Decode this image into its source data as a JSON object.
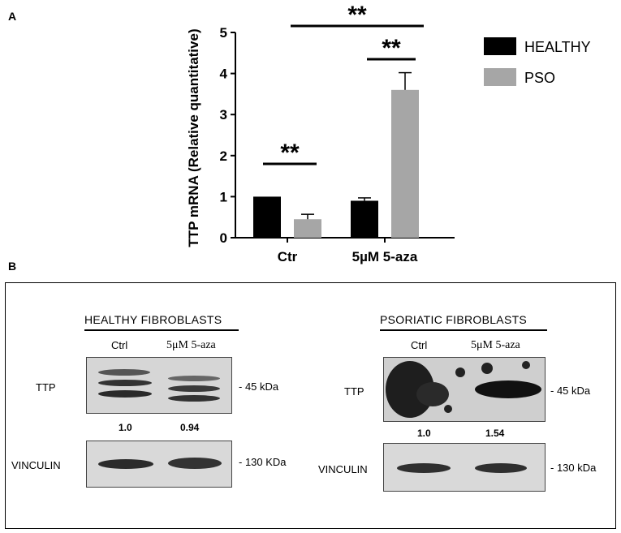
{
  "panel_a_label": "A",
  "panel_b_label": "B",
  "chart_data": {
    "type": "bar",
    "categories": [
      "Ctr",
      "5µM 5-aza"
    ],
    "series": [
      {
        "name": "HEALTHY",
        "color": "#000000",
        "values": [
          1.0,
          0.9
        ],
        "errors": [
          0.0,
          0.07
        ]
      },
      {
        "name": "PSO",
        "color": "#a6a6a6",
        "values": [
          0.45,
          3.6
        ],
        "errors": [
          0.12,
          0.42
        ]
      }
    ],
    "ylabel": "TTP mRNA (Relative quantitative)",
    "xlabel": "",
    "ylim": [
      0,
      5
    ],
    "yticks": [
      "0",
      "1",
      "2",
      "3",
      "4",
      "5"
    ],
    "grid": false,
    "legend_position": "right",
    "significance": [
      {
        "label": "**",
        "between": "HEALTHY Ctr vs PSO Ctr"
      },
      {
        "label": "**",
        "between": "HEALTHY 5-aza vs PSO 5-aza"
      },
      {
        "label": "**",
        "between": "PSO Ctr vs PSO 5-aza"
      }
    ]
  },
  "blots": {
    "healthy": {
      "title": "HEALTHY FIBROBLASTS",
      "lanes": [
        "Ctrl",
        "5μM 5-aza"
      ],
      "row1_label": "TTP",
      "row1_mw": "- 45 kDa",
      "ratios": [
        "1.0",
        "0.94"
      ],
      "row2_label": "VINCULIN",
      "row2_mw": "- 130 KDa"
    },
    "psoriatic": {
      "title": "PSORIATIC FIBROBLASTS",
      "lanes": [
        "Ctrl",
        "5μM 5-aza"
      ],
      "row1_label": "TTP",
      "row1_mw": "- 45 kDa",
      "ratios": [
        "1.0",
        "1.54"
      ],
      "row2_label": "VINCULIN",
      "row2_mw": "- 130 kDa"
    }
  }
}
